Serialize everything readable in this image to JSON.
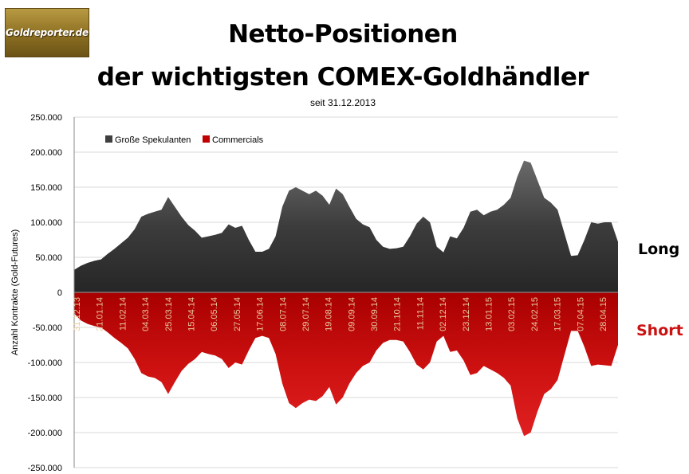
{
  "logo": {
    "text": "Goldreporter.de"
  },
  "title_line1": "Netto-Positionen",
  "title_line2": "der wichtigsten COMEX-Goldhändler",
  "subtitle": "seit 31.12.2013",
  "label_long": "Long",
  "label_short": "Short",
  "colors": {
    "specs": "#3f3f3f",
    "commercials": "#c00000",
    "grid": "#d9d9d9",
    "date_labels": "#e8c9a0"
  },
  "chart_data": {
    "type": "area",
    "ylabel": "Anzahl Kontrakte  (Gold-Futures)",
    "ylim": [
      -250000,
      250000
    ],
    "yticks": [
      250000,
      200000,
      150000,
      100000,
      50000,
      0,
      -50000,
      -100000,
      -150000,
      -200000,
      -250000
    ],
    "ytick_labels": [
      "250.000",
      "200.000",
      "150.000",
      "100.000",
      "50.000",
      "0",
      "-50.000",
      "-100.000",
      "-150.000",
      "-200.000",
      "-250.000"
    ],
    "grid": true,
    "legend_position": "top-left",
    "x_start": "2013-12-31",
    "x_end": "2015-05-05",
    "xtick_labels": [
      "31.12.13",
      "21.01.14",
      "11.02.14",
      "04.03.14",
      "25.03.14",
      "15.04.14",
      "06.05.14",
      "27.05.14",
      "17.06.14",
      "08.07.14",
      "29.07.14",
      "19.08.14",
      "09.09.14",
      "30.09.14",
      "21.10.14",
      "11.11.14",
      "02.12.14",
      "23.12.14",
      "13.01.15",
      "03.02.15",
      "24.02.15",
      "17.03.15",
      "07.04.15",
      "28.04.15"
    ],
    "series": [
      {
        "name": "Große Spekulanten",
        "values": [
          32000,
          38000,
          42000,
          45000,
          47000,
          55000,
          62000,
          70000,
          78000,
          90000,
          108000,
          112000,
          115000,
          118000,
          136000,
          122000,
          108000,
          96000,
          88000,
          78000,
          80000,
          82000,
          85000,
          97000,
          92000,
          95000,
          75000,
          58000,
          58000,
          62000,
          80000,
          122000,
          145000,
          150000,
          145000,
          140000,
          145000,
          138000,
          125000,
          148000,
          140000,
          122000,
          105000,
          97000,
          93000,
          75000,
          65000,
          62000,
          63000,
          65000,
          80000,
          98000,
          108000,
          100000,
          65000,
          57000,
          80000,
          77000,
          92000,
          115000,
          118000,
          110000,
          115000,
          118000,
          125000,
          135000,
          165000,
          188000,
          185000,
          160000,
          135000,
          128000,
          118000,
          85000,
          52000,
          53000,
          75000,
          100000,
          98000,
          100000,
          100000,
          72000
        ],
        "color": "#3f3f3f"
      },
      {
        "name": "Commercials",
        "values": [
          -30000,
          -40000,
          -45000,
          -48000,
          -50000,
          -57000,
          -65000,
          -72000,
          -80000,
          -95000,
          -115000,
          -120000,
          -122000,
          -128000,
          -145000,
          -128000,
          -112000,
          -102000,
          -95000,
          -85000,
          -88000,
          -90000,
          -95000,
          -108000,
          -100000,
          -103000,
          -83000,
          -65000,
          -62000,
          -65000,
          -88000,
          -130000,
          -158000,
          -165000,
          -158000,
          -153000,
          -155000,
          -148000,
          -135000,
          -160000,
          -150000,
          -130000,
          -115000,
          -105000,
          -100000,
          -83000,
          -72000,
          -68000,
          -68000,
          -70000,
          -85000,
          -103000,
          -110000,
          -100000,
          -70000,
          -62000,
          -85000,
          -83000,
          -97000,
          -118000,
          -115000,
          -105000,
          -110000,
          -115000,
          -122000,
          -133000,
          -180000,
          -205000,
          -200000,
          -170000,
          -145000,
          -138000,
          -125000,
          -90000,
          -55000,
          -55000,
          -78000,
          -105000,
          -103000,
          -104000,
          -105000,
          -75000
        ],
        "color": "#c00000"
      }
    ]
  }
}
